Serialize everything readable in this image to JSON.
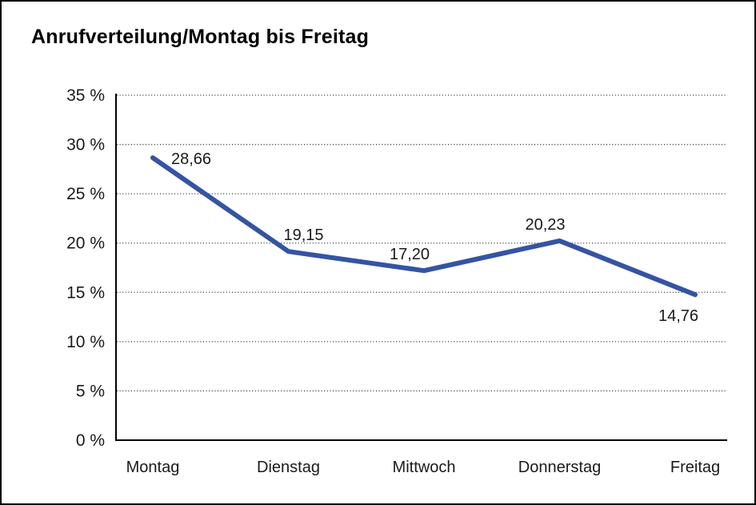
{
  "window": {
    "background": "#ffffff",
    "border_color": "#000000"
  },
  "chart_data": {
    "type": "line",
    "title": "Anrufverteilung/Montag bis Freitag",
    "categories": [
      "Montag",
      "Dienstag",
      "Mittwoch",
      "Donnerstag",
      "Freitag"
    ],
    "values": [
      28.66,
      19.15,
      17.2,
      20.23,
      14.76
    ],
    "value_labels": [
      "28,66",
      "19,15",
      "17,20",
      "20,23",
      "14,76"
    ],
    "xlabel": "",
    "ylabel": "",
    "ylim": [
      0,
      35
    ],
    "y_tick_step": 5,
    "y_ticks": [
      {
        "value": 0,
        "label": "0 %"
      },
      {
        "value": 5,
        "label": "5 %"
      },
      {
        "value": 10,
        "label": "10 %"
      },
      {
        "value": 15,
        "label": "15 %"
      },
      {
        "value": 20,
        "label": "20 %"
      },
      {
        "value": 25,
        "label": "25 %"
      },
      {
        "value": 30,
        "label": "30 %"
      },
      {
        "value": 35,
        "label": "35 %"
      }
    ],
    "grid": "horizontal-dotted",
    "legend_position": "none",
    "colors": {
      "line": "#3454a3",
      "text": "#1a1a1a",
      "grid": "#2e2e2e",
      "axis": "#000000"
    }
  }
}
